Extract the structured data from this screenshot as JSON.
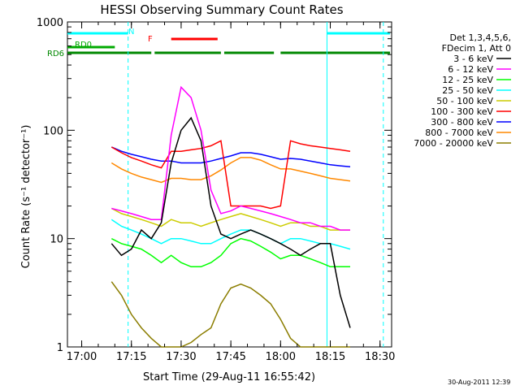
{
  "chart_data": {
    "type": "line",
    "title": "HESSI Observing Summary Count Rates",
    "xlabel": "Start Time (29-Aug-11 16:55:42)",
    "ylabel": "Count Rate (s⁻¹ detector⁻¹)",
    "y_scale": "log",
    "ylim": [
      1,
      1000
    ],
    "xlim": [
      "16:55:42",
      "18:33:30"
    ],
    "x_ticks": [
      "17:00",
      "17:15",
      "17:30",
      "17:45",
      "18:00",
      "18:15",
      "18:30"
    ],
    "y_ticks": [
      "1",
      "10",
      "100",
      "1000"
    ],
    "grid": false,
    "legend_position": "right",
    "legend_header": [
      "Det 1,3,4,5,6,",
      "FDecim 1, Att 0"
    ],
    "series": [
      {
        "name": "3 - 6 keV",
        "color": "#000000",
        "x": [
          "17:09",
          "17:12",
          "17:15",
          "17:18",
          "17:21",
          "17:24",
          "17:27",
          "17:30",
          "17:33",
          "17:36",
          "17:39",
          "17:42",
          "17:45",
          "17:48",
          "17:51",
          "17:54",
          "17:57",
          "18:00",
          "18:03",
          "18:06",
          "18:09",
          "18:12",
          "18:15",
          "18:18",
          "18:21"
        ],
        "values": [
          9,
          7,
          8,
          12,
          10,
          14,
          50,
          100,
          130,
          80,
          20,
          11,
          10,
          11,
          12,
          11,
          10,
          9,
          8,
          7,
          8,
          9,
          9,
          3,
          1.5
        ]
      },
      {
        "name": "6 - 12 keV",
        "color": "#ff00ff",
        "x": [
          "17:09",
          "17:12",
          "17:15",
          "17:18",
          "17:21",
          "17:24",
          "17:27",
          "17:30",
          "17:33",
          "17:36",
          "17:39",
          "17:42",
          "17:45",
          "17:48",
          "17:51",
          "17:54",
          "17:57",
          "18:00",
          "18:03",
          "18:06",
          "18:09",
          "18:12",
          "18:15",
          "18:18",
          "18:21"
        ],
        "values": [
          19,
          18,
          17,
          16,
          15,
          15,
          90,
          250,
          200,
          100,
          28,
          17,
          18,
          20,
          19,
          18,
          17,
          16,
          15,
          14,
          14,
          13,
          13,
          12,
          12
        ]
      },
      {
        "name": "12 - 25 keV",
        "color": "#00ff00",
        "x": [
          "17:09",
          "17:12",
          "17:15",
          "17:18",
          "17:21",
          "17:24",
          "17:27",
          "17:30",
          "17:33",
          "17:36",
          "17:39",
          "17:42",
          "17:45",
          "17:48",
          "17:51",
          "17:54",
          "17:57",
          "18:00",
          "18:03",
          "18:06",
          "18:09",
          "18:12",
          "18:15",
          "18:18",
          "18:21"
        ],
        "values": [
          10,
          9,
          8.5,
          8,
          7,
          6,
          7,
          6,
          5.5,
          5.5,
          6,
          7,
          9,
          10,
          9.5,
          8.5,
          7.5,
          6.5,
          7,
          7,
          6.5,
          6,
          5.5,
          5.5,
          5.5
        ]
      },
      {
        "name": "25 - 50 keV",
        "color": "#00ffff",
        "x": [
          "17:09",
          "17:12",
          "17:15",
          "17:18",
          "17:21",
          "17:24",
          "17:27",
          "17:30",
          "17:33",
          "17:36",
          "17:39",
          "17:42",
          "17:45",
          "17:48",
          "17:51",
          "17:54",
          "17:57",
          "18:00",
          "18:03",
          "18:06",
          "18:09",
          "18:12",
          "18:15",
          "18:18",
          "18:21"
        ],
        "values": [
          15,
          13,
          12,
          11,
          10,
          9,
          10,
          10,
          9.5,
          9,
          9,
          10,
          11,
          12,
          12,
          11,
          10,
          9,
          10,
          10,
          9.5,
          9,
          9,
          8.5,
          8
        ]
      },
      {
        "name": "50 - 100 keV",
        "color": "#cccc00",
        "x": [
          "17:09",
          "17:12",
          "17:15",
          "17:18",
          "17:21",
          "17:24",
          "17:27",
          "17:30",
          "17:33",
          "17:36",
          "17:39",
          "17:42",
          "17:45",
          "17:48",
          "17:51",
          "17:54",
          "17:57",
          "18:00",
          "18:03",
          "18:06",
          "18:09",
          "18:12",
          "18:15",
          "18:18",
          "18:21"
        ],
        "values": [
          19,
          17,
          16,
          15,
          14,
          13,
          15,
          14,
          14,
          13,
          14,
          15,
          16,
          17,
          16,
          15,
          14,
          13,
          14,
          14,
          13,
          13,
          12,
          12,
          12
        ]
      },
      {
        "name": "100 - 300 keV",
        "color": "#ff0000",
        "x": [
          "17:09",
          "17:12",
          "17:15",
          "17:18",
          "17:21",
          "17:24",
          "17:27",
          "17:30",
          "17:33",
          "17:36",
          "17:39",
          "17:42",
          "17:45",
          "17:48",
          "17:51",
          "17:54",
          "17:57",
          "18:00",
          "18:03",
          "18:06",
          "18:09",
          "18:12",
          "18:15",
          "18:18",
          "18:21"
        ],
        "values": [
          70,
          62,
          56,
          52,
          48,
          45,
          64,
          64,
          66,
          68,
          72,
          80,
          20,
          20,
          20,
          20,
          19,
          20,
          80,
          75,
          72,
          70,
          68,
          66,
          64
        ]
      },
      {
        "name": "300 - 800 keV",
        "color": "#0000ff",
        "x": [
          "17:09",
          "17:12",
          "17:15",
          "17:18",
          "17:21",
          "17:24",
          "17:27",
          "17:30",
          "17:33",
          "17:36",
          "17:39",
          "17:42",
          "17:45",
          "17:48",
          "17:51",
          "17:54",
          "17:57",
          "18:00",
          "18:03",
          "18:06",
          "18:09",
          "18:12",
          "18:15",
          "18:18",
          "18:21"
        ],
        "values": [
          70,
          64,
          60,
          57,
          54,
          52,
          52,
          50,
          50,
          50,
          52,
          55,
          58,
          62,
          62,
          60,
          57,
          54,
          55,
          54,
          52,
          50,
          48,
          47,
          46
        ]
      },
      {
        "name": "800 - 7000 keV",
        "color": "#ff8800",
        "x": [
          "17:09",
          "17:12",
          "17:15",
          "17:18",
          "17:21",
          "17:24",
          "17:27",
          "17:30",
          "17:33",
          "17:36",
          "17:39",
          "17:42",
          "17:45",
          "17:48",
          "17:51",
          "17:54",
          "17:57",
          "18:00",
          "18:03",
          "18:06",
          "18:09",
          "18:12",
          "18:15",
          "18:18",
          "18:21"
        ],
        "values": [
          50,
          44,
          40,
          37,
          35,
          33,
          36,
          36,
          35,
          35,
          38,
          43,
          50,
          56,
          56,
          53,
          48,
          44,
          44,
          42,
          40,
          38,
          36,
          35,
          34
        ]
      },
      {
        "name": "7000 - 20000 keV",
        "color": "#8b7d00",
        "x": [
          "17:09",
          "17:12",
          "17:15",
          "17:18",
          "17:21",
          "17:24",
          "17:27",
          "17:30",
          "17:33",
          "17:36",
          "17:39",
          "17:42",
          "17:45",
          "17:48",
          "17:51",
          "17:54",
          "17:57",
          "18:00",
          "18:03",
          "18:06",
          "18:09",
          "18:12",
          "18:15",
          "18:18",
          "18:21"
        ],
        "values": [
          4,
          3,
          2,
          1.5,
          1.2,
          1.0,
          1.0,
          1.0,
          1.1,
          1.3,
          1.5,
          2.5,
          3.5,
          3.8,
          3.5,
          3,
          2.5,
          1.8,
          1.2,
          1.0,
          1.0,
          1.0,
          1.0,
          1.0,
          1.0
        ]
      }
    ],
    "flags": [
      {
        "label": "N",
        "color": "#00ffff",
        "segments": [
          [
            "16:55:42",
            "17:14"
          ],
          [
            "18:14",
            "18:33"
          ]
        ]
      },
      {
        "label": "F",
        "color": "#ff0000",
        "segments": [
          [
            "17:27",
            "17:41"
          ]
        ]
      },
      {
        "label": "RD0",
        "color": "#00aa00",
        "segments": [
          [
            "16:55:42",
            "17:10"
          ]
        ]
      },
      {
        "label": "RD6",
        "color": "#008800",
        "segments": [
          [
            "16:55:42",
            "17:21"
          ],
          [
            "17:22",
            "17:42"
          ],
          [
            "17:43",
            "17:58"
          ],
          [
            "18:00",
            "18:33"
          ]
        ]
      }
    ],
    "vertical_markers": [
      {
        "x": "17:14",
        "color": "#00ffff",
        "style": "dashed"
      },
      {
        "x": "18:14",
        "color": "#00ffff",
        "style": "solid"
      },
      {
        "x": "18:31",
        "color": "#00ffff",
        "style": "dashed"
      }
    ]
  },
  "footer": {
    "timestamp": "30-Aug-2011 12:39"
  }
}
